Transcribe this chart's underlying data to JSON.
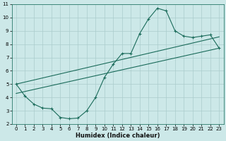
{
  "xlabel": "Humidex (Indice chaleur)",
  "bg_color": "#cce8e8",
  "grid_color": "#aacccc",
  "line_color": "#1a6b5a",
  "xlim": [
    -0.5,
    23.5
  ],
  "ylim": [
    2,
    11
  ],
  "xticks": [
    0,
    1,
    2,
    3,
    4,
    5,
    6,
    7,
    8,
    9,
    10,
    11,
    12,
    13,
    14,
    15,
    16,
    17,
    18,
    19,
    20,
    21,
    22,
    23
  ],
  "yticks": [
    2,
    3,
    4,
    5,
    6,
    7,
    8,
    9,
    10,
    11
  ],
  "line1_x": [
    0,
    1,
    2,
    3,
    4,
    5,
    6,
    7,
    8,
    9,
    10,
    11,
    12,
    13,
    14,
    15,
    16,
    17,
    18,
    19,
    20,
    21,
    22,
    23
  ],
  "line1_y": [
    5.0,
    4.1,
    3.5,
    3.2,
    3.15,
    2.5,
    2.4,
    2.45,
    3.0,
    4.0,
    5.5,
    6.5,
    7.3,
    7.3,
    8.8,
    9.9,
    10.7,
    10.5,
    9.0,
    8.6,
    8.5,
    8.6,
    8.7,
    7.7
  ],
  "line2_x": [
    0,
    23
  ],
  "line2_y": [
    4.3,
    7.7
  ],
  "line3_x": [
    0,
    23
  ],
  "line3_y": [
    5.0,
    8.55
  ],
  "xlabel_fontsize": 6,
  "tick_fontsize": 5
}
